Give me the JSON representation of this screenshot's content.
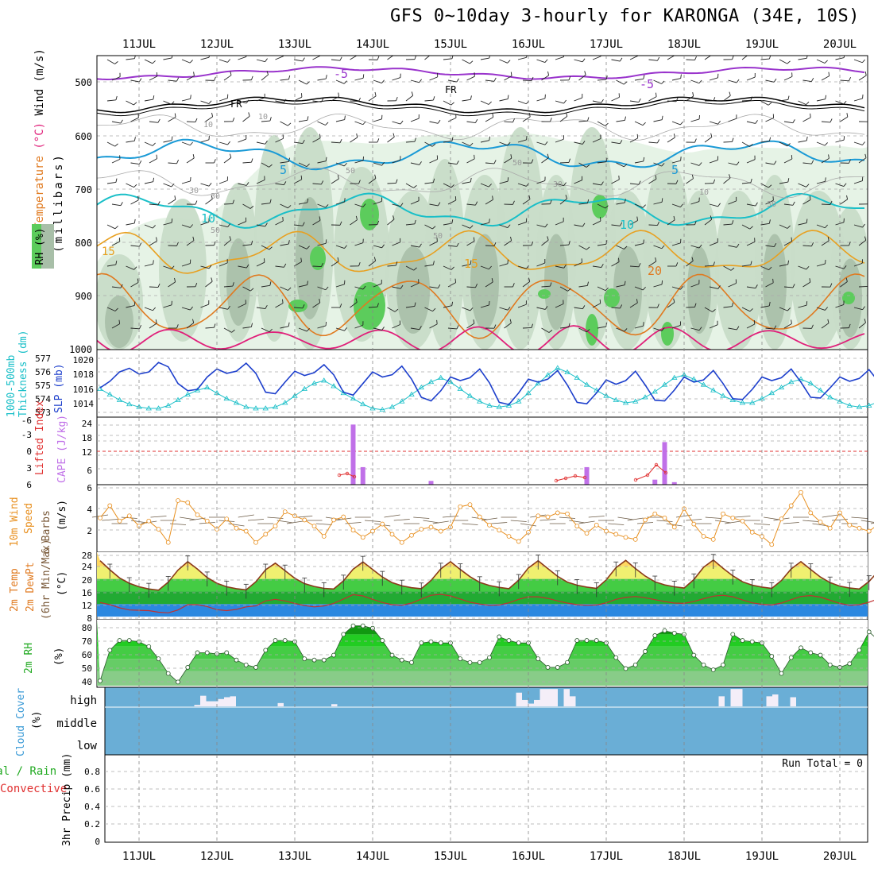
{
  "title": "GFS 0~10day 3-hourly for KARONGA (34E, 10S)",
  "dates": [
    "11JUL",
    "12JUL",
    "13JUL",
    "14JUL",
    "15JUL",
    "16JUL",
    "17JUL",
    "18JUL",
    "19JUL",
    "20JUL"
  ],
  "colors": {
    "purple": "#9933cc",
    "black": "#000000",
    "cyan_blue": "#1a9ad6",
    "cyan": "#19bfc8",
    "orange_light": "#e8a020",
    "orange": "#e07a20",
    "magenta": "#e0207a",
    "rh_light": "#e6f3e6",
    "rh_mid": "#c8dcc8",
    "rh_dark": "#a8bfa8",
    "rh_green": "#5ccc5c"
  },
  "panels": {
    "upper_air": {
      "ylabel_wind": "Wind (m/s)",
      "ylabel_temp_prefix": "Temperature",
      "ylabel_temp_unit": "(°C)",
      "ylabel_rh": "RH (%)",
      "ylabel_mb": "(millibars)",
      "yticks": [
        "500",
        "600",
        "700",
        "800",
        "900",
        "1000"
      ],
      "isotherm_labels": [
        "-5",
        "-5",
        "FR",
        "FR",
        "5",
        "5",
        "10",
        "10",
        "15",
        "15",
        "20",
        "10",
        "10",
        "30",
        "30",
        "50",
        "50",
        "50",
        "30",
        "30",
        "10",
        "50"
      ]
    },
    "thickness_slp": {
      "ylabel1": "1000-500mb",
      "ylabel2": "Thickness (dm)",
      "ylabel3": "SLP (mb)",
      "left_ticks": [
        "577",
        "576",
        "575",
        "574",
        "573"
      ],
      "right_ticks": [
        "1020",
        "1018",
        "1016",
        "1014"
      ]
    },
    "cape_li": {
      "ylabel1": "Lifted Index",
      "ylabel2": "CAPE (J/kg)",
      "left_ticks": [
        "-6",
        "-3",
        "0",
        "3",
        "6"
      ],
      "right_ticks": [
        "24",
        "18",
        "12",
        "6"
      ]
    },
    "wind10m": {
      "ylabel1": "10m Wind",
      "ylabel2": "Speed",
      "ylabel3": "& Barbs",
      "ylabel4": "(m/s)",
      "ticks": [
        "6",
        "4",
        "2"
      ]
    },
    "temp2m": {
      "ylabel1": "2m Temp",
      "ylabel2": "2m DewPt",
      "ylabel3": "(6hr Min/Max)",
      "ylabel4": "(°C)",
      "ticks": [
        "28",
        "24",
        "20",
        "16",
        "12",
        "8"
      ]
    },
    "rh2m": {
      "ylabel1": "2m RH",
      "ylabel2": "(%)",
      "ticks": [
        "80",
        "70",
        "60",
        "50",
        "40"
      ]
    },
    "cloud": {
      "ylabel1": "Cloud Cover",
      "ylabel2": "(%)",
      "levels": [
        "high",
        "middle",
        "low"
      ]
    },
    "precip": {
      "ylabel1": "Total / Rain",
      "ylabel2": "Convective",
      "ylabel3": "3hr Precip (mm)",
      "ticks": [
        "0.8",
        "0.6",
        "0.4",
        "0.2",
        "0"
      ],
      "run_total": "Run Total = 0"
    }
  },
  "chart_data": [
    {
      "type": "line",
      "name": "1000-500mb Thickness",
      "x_start": "10JUL 12UTC",
      "step_hours": 3,
      "values": [
        574.8,
        574.4,
        574.0,
        573.7,
        573.5,
        573.4,
        573.4,
        573.6,
        574.0,
        574.4,
        574.7,
        574.9,
        574.5,
        574.1,
        573.8,
        573.5,
        573.4,
        573.4,
        573.5,
        573.8,
        574.3,
        574.8,
        575.2,
        575.4,
        575.0,
        574.5,
        574.1,
        573.7,
        573.4,
        573.3,
        573.5,
        573.9,
        574.4,
        574.9,
        575.3,
        575.6,
        575.3,
        574.8,
        574.3,
        573.9,
        573.6,
        573.5,
        573.6,
        573.9,
        574.5,
        575.2,
        575.8,
        576.3,
        576.0,
        575.6,
        575.1,
        574.7,
        574.3,
        574.0,
        573.8,
        573.9,
        574.2,
        574.6,
        575.1,
        575.6,
        575.8,
        575.5,
        575.1,
        574.7,
        574.3,
        574.0,
        573.8,
        573.8,
        574.1,
        574.5,
        574.9,
        575.3,
        575.5,
        575.2,
        574.7,
        574.2,
        573.9,
        573.6,
        573.5,
        573.6,
        573.9,
        574.3,
        574.8,
        575.2,
        575.4
      ]
    },
    {
      "type": "line",
      "name": "SLP",
      "x_start": "10JUL 12UTC",
      "step_hours": 3,
      "values": [
        1016.6,
        1017.5,
        1018.8,
        1019.3,
        1018.5,
        1018.8,
        1020.1,
        1019.5,
        1017.2,
        1016.2,
        1016.4,
        1018.1,
        1019.2,
        1018.6,
        1018.9,
        1020.0,
        1018.6,
        1016.0,
        1015.8,
        1017.4,
        1018.9,
        1018.3,
        1018.7,
        1019.8,
        1018.4,
        1016.0,
        1015.6,
        1017.2,
        1018.8,
        1018.1,
        1018.4,
        1019.6,
        1017.8,
        1015.3,
        1014.8,
        1016.2,
        1018.1,
        1017.6,
        1018.0,
        1019.2,
        1017.3,
        1014.6,
        1014.3,
        1015.9,
        1017.8,
        1017.4,
        1017.8,
        1019.0,
        1017.0,
        1014.6,
        1014.4,
        1015.9,
        1017.7,
        1017.1,
        1017.6,
        1018.9,
        1017.0,
        1014.9,
        1014.8,
        1016.3,
        1018.1,
        1017.4,
        1017.7,
        1019.0,
        1017.2,
        1015.1,
        1015.0,
        1016.4,
        1018.1,
        1017.6,
        1018.0,
        1019.2,
        1017.4,
        1015.3,
        1015.2,
        1016.6,
        1018.1,
        1017.5,
        1017.9,
        1019.1,
        1017.4,
        1015.6,
        1015.9,
        1017.1,
        1018.3
      ]
    },
    {
      "type": "bar",
      "name": "CAPE",
      "events": [
        {
          "x": "13JUL 18UTC",
          "value": 24
        },
        {
          "x": "13JUL 21UTC",
          "value": 7
        },
        {
          "x": "14JUL 18UTC",
          "value": 1.5
        },
        {
          "x": "16JUL 18UTC",
          "value": 7
        },
        {
          "x": "17JUL 15UTC",
          "value": 2
        },
        {
          "x": "17JUL 18UTC",
          "value": 17
        },
        {
          "x": "17JUL 21UTC",
          "value": 1
        }
      ]
    },
    {
      "type": "line",
      "name": "10m Wind Speed",
      "x_start": "10JUL 12UTC",
      "step_hours": 3,
      "values": [
        3.2,
        4.4,
        2.9,
        3.4,
        2.4,
        2.9,
        2.1,
        0.8,
        4.9,
        4.7,
        3.5,
        2.9,
        2.1,
        3.1,
        2.2,
        1.9,
        0.8,
        1.6,
        2.4,
        3.8,
        3.4,
        3.0,
        2.4,
        1.4,
        3.0,
        3.3,
        2.0,
        1.3,
        1.9,
        2.6,
        1.6,
        0.8,
        1.5,
        2.1,
        2.3,
        1.9,
        2.3,
        4.3,
        4.5,
        3.3,
        2.5,
        2.0,
        1.4,
        0.9,
        1.8,
        3.4,
        3.3,
        3.7,
        3.6,
        2.4,
        1.7,
        2.5,
        1.9,
        1.6,
        1.3,
        1.1,
        3.0,
        3.6,
        3.2,
        2.3,
        4.1,
        2.6,
        1.4,
        1.1,
        3.6,
        3.2,
        2.9,
        1.8,
        1.4,
        0.6,
        3.1,
        4.4,
        5.7,
        3.7,
        2.8,
        2.2,
        3.7,
        2.5,
        2.2,
        1.9,
        2.6,
        1.8,
        1.6,
        1.0,
        1.6
      ]
    },
    {
      "type": "line",
      "name": "2m Temp",
      "x_start": "10JUL 12UTC",
      "step_hours": 3,
      "values": [
        25.8,
        22.9,
        20.3,
        18.6,
        17.5,
        16.8,
        16.4,
        19.0,
        22.8,
        25.5,
        23.1,
        20.4,
        18.6,
        17.5,
        16.9,
        16.5,
        19.1,
        22.9,
        25.0,
        22.6,
        20.2,
        18.5,
        17.6,
        17.0,
        16.8,
        19.4,
        23.1,
        25.4,
        23.0,
        20.6,
        18.8,
        17.8,
        17.2,
        16.9,
        19.5,
        23.2,
        25.5,
        23.0,
        20.7,
        18.9,
        17.9,
        17.3,
        16.9,
        19.6,
        23.5,
        25.8,
        23.3,
        20.8,
        19.0,
        18.0,
        17.4,
        17.0,
        19.7,
        23.6,
        25.9,
        23.3,
        20.9,
        19.1,
        18.1,
        17.5,
        17.1,
        19.8,
        23.7,
        26.0,
        23.4,
        21.0,
        19.1,
        18.0,
        17.4,
        17.0,
        19.5,
        23.2,
        25.5,
        23.0,
        20.6,
        18.8,
        17.7,
        17.1,
        16.8,
        19.2,
        22.6,
        24.8,
        22.5,
        20.4,
        19.2
      ]
    },
    {
      "type": "line",
      "name": "2m DewPt",
      "x_start": "10JUL 12UTC",
      "step_hours": 3,
      "values": [
        12.5,
        11.8,
        10.8,
        10.1,
        10.0,
        9.9,
        9.4,
        9.2,
        10.1,
        11.8,
        11.8,
        11.2,
        10.2,
        9.9,
        10.3,
        11.1,
        11.4,
        13.0,
        13.5,
        13.0,
        12.2,
        11.5,
        11.1,
        11.4,
        12.2,
        13.6,
        15.0,
        14.6,
        13.5,
        12.5,
        11.8,
        11.6,
        12.3,
        13.6,
        14.8,
        15.1,
        14.6,
        13.6,
        12.6,
        12.0,
        11.6,
        11.7,
        12.4,
        13.5,
        14.3,
        14.3,
        13.8,
        13.0,
        12.3,
        11.8,
        11.6,
        11.7,
        12.4,
        13.5,
        14.1,
        14.4,
        14.0,
        13.4,
        12.8,
        12.3,
        12.2,
        12.8,
        13.7,
        14.5,
        14.8,
        14.3,
        13.3,
        12.4,
        11.9,
        11.7,
        12.3,
        13.4,
        14.4,
        14.7,
        14.2,
        13.2,
        12.2,
        11.6,
        11.8,
        12.6,
        13.7,
        14.6,
        14.7,
        14.1,
        13.4
      ]
    },
    {
      "type": "area",
      "name": "2m RH",
      "x_start": "10JUL 12UTC",
      "step_hours": 3,
      "values": [
        37,
        62,
        70,
        70,
        69,
        65,
        55,
        43,
        36,
        48,
        60,
        60,
        59,
        60,
        54,
        50,
        48,
        62,
        70,
        70,
        69,
        55,
        54,
        54,
        58,
        75,
        82,
        82,
        80,
        70,
        58,
        54,
        52,
        68,
        69,
        68,
        68,
        55,
        52,
        52,
        56,
        73,
        70,
        68,
        68,
        55,
        48,
        48,
        52,
        70,
        70,
        70,
        68,
        56,
        47,
        50,
        61,
        74,
        78,
        76,
        75,
        58,
        50,
        46,
        50,
        75,
        70,
        69,
        68,
        57,
        43,
        56,
        64,
        60,
        58,
        50,
        48,
        51,
        62,
        77,
        70,
        69,
        69,
        62,
        51
      ]
    },
    {
      "type": "bar",
      "name": "Cloud Cover (high)",
      "x_start": "10JUL 12UTC",
      "step_hours": 3,
      "values": [
        0,
        0,
        0,
        0,
        0,
        0,
        0,
        0,
        0,
        0,
        0,
        0,
        0,
        0,
        0,
        8,
        58,
        28,
        28,
        40,
        50,
        55,
        0,
        0,
        0,
        0,
        0,
        0,
        0,
        18,
        0,
        0,
        0,
        0,
        0,
        0,
        0,
        0,
        12,
        0,
        0,
        0,
        0,
        0,
        0,
        0,
        0,
        0,
        0,
        0,
        0,
        0,
        0,
        0,
        0,
        0,
        0,
        0,
        0,
        0,
        0,
        0,
        0,
        0,
        0,
        0,
        0,
        0,
        0,
        75,
        35,
        15,
        35,
        95,
        95,
        95,
        0,
        95,
        55,
        0,
        0,
        0,
        0,
        0,
        0,
        0,
        0,
        0,
        0,
        0,
        0,
        0,
        0,
        0,
        0,
        0,
        0,
        0,
        0,
        0,
        0,
        0,
        0,
        55,
        0,
        95,
        95,
        0,
        0,
        0,
        0,
        55,
        65,
        0,
        0,
        50,
        0,
        0,
        0,
        0,
        0,
        0,
        0,
        0,
        0,
        0,
        0,
        0,
        0,
        0
      ]
    },
    {
      "type": "bar",
      "name": "3hr Precip",
      "values": [],
      "ylim": [
        0,
        0.9
      ]
    }
  ]
}
